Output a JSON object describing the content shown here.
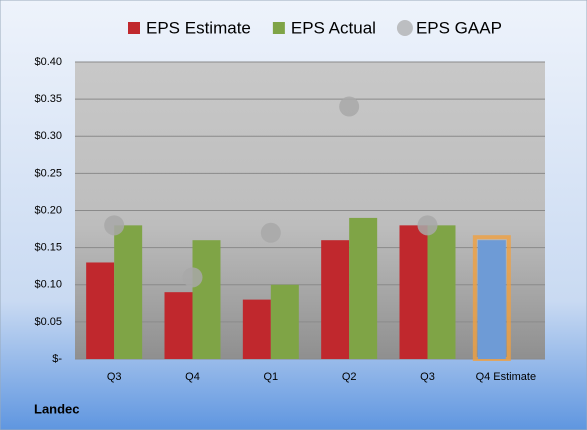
{
  "chart_data": {
    "type": "bar",
    "categories": [
      "Q3",
      "Q4",
      "Q1",
      "Q2",
      "Q3",
      "Q4 Estimate"
    ],
    "series": [
      {
        "name": "EPS Estimate",
        "color": "#c0282d",
        "kind": "bar",
        "values": [
          0.13,
          0.09,
          0.08,
          0.16,
          0.18,
          0.16
        ],
        "colors": [
          "#c0282d",
          "#c0282d",
          "#c0282d",
          "#c0282d",
          "#c0282d",
          "#6e9bd6"
        ]
      },
      {
        "name": "EPS Actual",
        "color": "#7fa446",
        "kind": "bar",
        "values": [
          0.18,
          0.16,
          0.1,
          0.19,
          0.18,
          null
        ]
      },
      {
        "name": "EPS GAAP",
        "color": "#a8a8a8",
        "kind": "dot",
        "values": [
          0.18,
          0.11,
          0.17,
          0.34,
          0.18,
          null
        ]
      }
    ],
    "ylim": [
      0,
      0.4
    ],
    "yticks": [
      {
        "value": 0,
        "label": "$-"
      },
      {
        "value": 0.05,
        "label": "$0.05"
      },
      {
        "value": 0.1,
        "label": "$0.10"
      },
      {
        "value": 0.15,
        "label": "$0.15"
      },
      {
        "value": 0.2,
        "label": "$0.20"
      },
      {
        "value": 0.25,
        "label": "$0.25"
      },
      {
        "value": 0.3,
        "label": "$0.30"
      },
      {
        "value": 0.35,
        "label": "$0.35"
      },
      {
        "value": 0.4,
        "label": "$0.40"
      }
    ],
    "grid": true,
    "legend": "top",
    "company": "Landec"
  }
}
